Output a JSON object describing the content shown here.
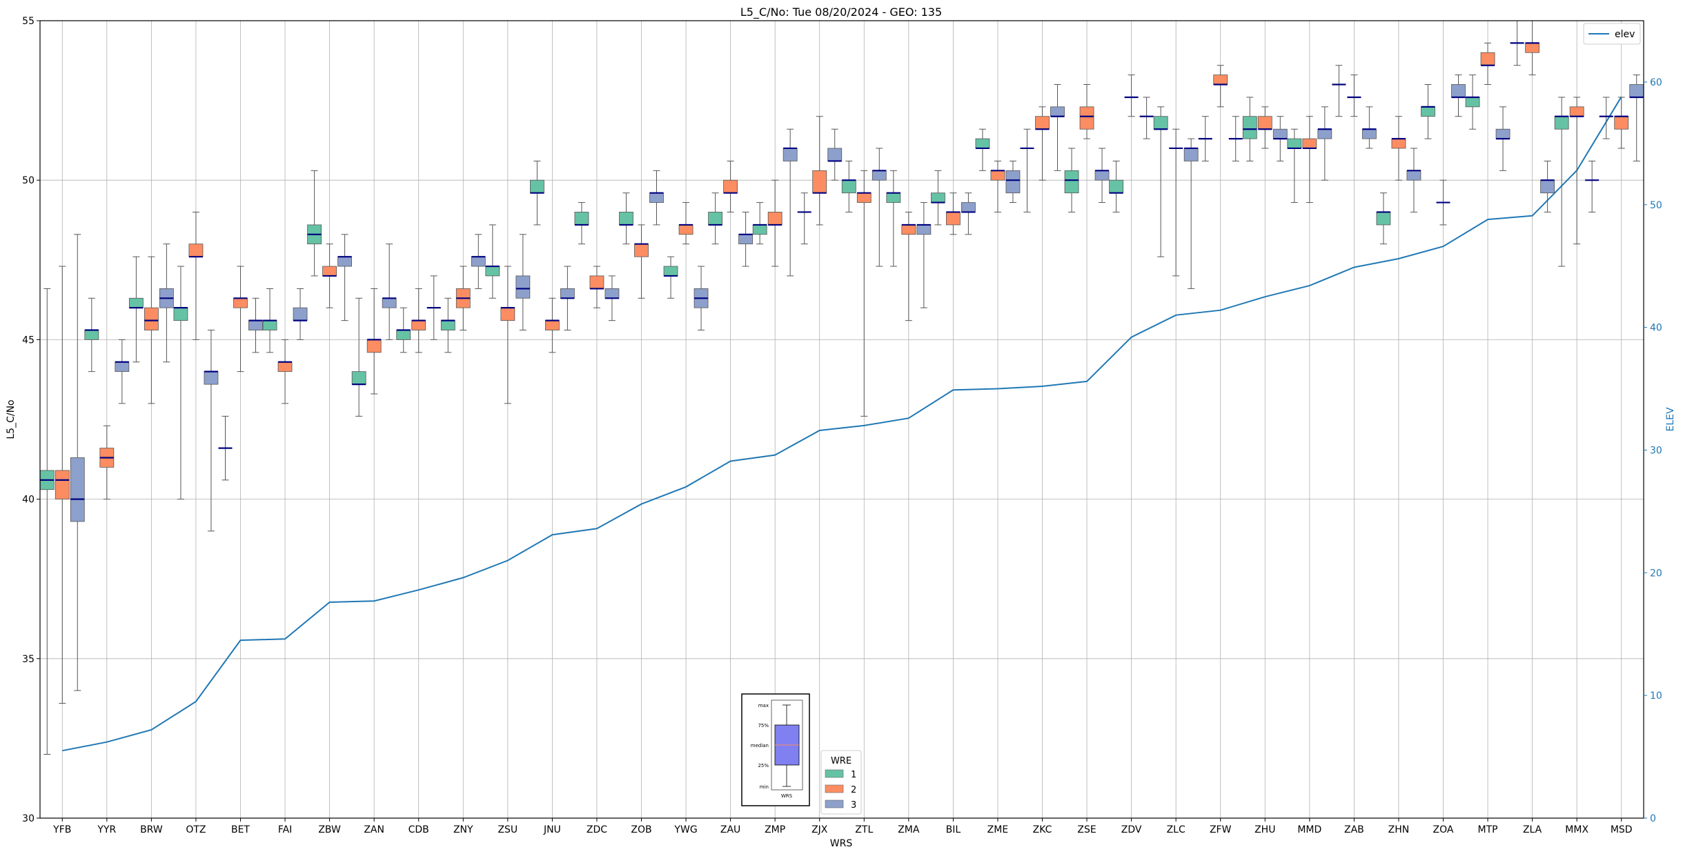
{
  "chart_data": {
    "type": "box",
    "title": "L5_C/No: Tue 08/20/2024 - GEO: 135",
    "xlabel": "WRS",
    "ylabel": "L5_C/No",
    "y2label": "ELEV",
    "ylim": [
      30,
      55
    ],
    "y2lim": [
      0,
      65
    ],
    "yticks": [
      "30",
      "35",
      "40",
      "45",
      "50",
      "55"
    ],
    "y2ticks": [
      "0",
      "10",
      "20",
      "30",
      "40",
      "50",
      "60"
    ],
    "grid": true,
    "colors": {
      "1": "#66c2a5",
      "2": "#fc8d62",
      "3": "#8da0cb",
      "median": "#000080",
      "whisker": "#555555",
      "elev": "#1f77b4",
      "y2axis": "#1f77b4"
    },
    "categories": [
      "YFB",
      "YYR",
      "BRW",
      "OTZ",
      "BET",
      "FAI",
      "ZBW",
      "ZAN",
      "CDB",
      "ZNY",
      "ZSU",
      "JNU",
      "ZDC",
      "ZOB",
      "YWG",
      "ZAU",
      "ZMP",
      "ZJX",
      "ZTL",
      "ZMA",
      "BIL",
      "ZME",
      "ZKC",
      "ZSE",
      "ZDV",
      "ZLC",
      "ZFW",
      "ZHU",
      "MMD",
      "ZAB",
      "ZHN",
      "ZOA",
      "MTP",
      "ZLA",
      "MMX",
      "MSD"
    ],
    "elev_legend": "elev",
    "elev": [
      5.5,
      6.2,
      7.2,
      9.5,
      14.5,
      14.6,
      17.6,
      17.7,
      18.6,
      19.6,
      21.0,
      23.1,
      23.6,
      25.6,
      27.0,
      29.1,
      29.6,
      31.6,
      32.0,
      32.6,
      34.9,
      35.0,
      35.2,
      35.6,
      39.2,
      41.0,
      41.4,
      42.5,
      43.4,
      44.9,
      45.6,
      46.6,
      48.8,
      49.1,
      52.8,
      58.8
    ],
    "legend": {
      "title": "WRE",
      "entries": [
        "1",
        "2",
        "3"
      ]
    },
    "inset": {
      "labels": [
        "max",
        "75%",
        "median",
        "25%",
        "min"
      ],
      "xlabel": "WRS"
    },
    "boxes": [
      {
        "cat": "YFB",
        "wre": 1,
        "min": 32.0,
        "q1": 40.3,
        "med": 40.6,
        "q3": 40.9,
        "max": 46.6
      },
      {
        "cat": "YFB",
        "wre": 2,
        "min": 33.6,
        "q1": 40.0,
        "med": 40.6,
        "q3": 40.9,
        "max": 47.3
      },
      {
        "cat": "YFB",
        "wre": 3,
        "min": 34.0,
        "q1": 39.3,
        "med": 40.0,
        "q3": 41.3,
        "max": 48.3
      },
      {
        "cat": "YYR",
        "wre": 1,
        "min": 44.0,
        "q1": 45.0,
        "med": 45.3,
        "q3": 45.3,
        "max": 46.3
      },
      {
        "cat": "YYR",
        "wre": 2,
        "min": 40.0,
        "q1": 41.0,
        "med": 41.3,
        "q3": 41.6,
        "max": 42.3
      },
      {
        "cat": "YYR",
        "wre": 3,
        "min": 43.0,
        "q1": 44.0,
        "med": 44.3,
        "q3": 44.3,
        "max": 45.0
      },
      {
        "cat": "BRW",
        "wre": 1,
        "min": 44.3,
        "q1": 46.0,
        "med": 46.0,
        "q3": 46.3,
        "max": 47.6
      },
      {
        "cat": "BRW",
        "wre": 2,
        "min": 43.0,
        "q1": 45.3,
        "med": 45.6,
        "q3": 46.0,
        "max": 47.6
      },
      {
        "cat": "BRW",
        "wre": 3,
        "min": 44.3,
        "q1": 46.0,
        "med": 46.3,
        "q3": 46.6,
        "max": 48.0
      },
      {
        "cat": "OTZ",
        "wre": 1,
        "min": 40.0,
        "q1": 45.6,
        "med": 46.0,
        "q3": 46.0,
        "max": 47.3
      },
      {
        "cat": "OTZ",
        "wre": 2,
        "min": 45.0,
        "q1": 47.6,
        "med": 47.6,
        "q3": 48.0,
        "max": 49.0
      },
      {
        "cat": "OTZ",
        "wre": 3,
        "min": 39.0,
        "q1": 43.6,
        "med": 44.0,
        "q3": 44.0,
        "max": 45.3
      },
      {
        "cat": "BET",
        "wre": 1,
        "min": 40.6,
        "q1": 41.6,
        "med": 41.6,
        "q3": 41.6,
        "max": 42.6
      },
      {
        "cat": "BET",
        "wre": 2,
        "min": 44.0,
        "q1": 46.0,
        "med": 46.3,
        "q3": 46.3,
        "max": 47.3
      },
      {
        "cat": "BET",
        "wre": 3,
        "min": 44.6,
        "q1": 45.3,
        "med": 45.6,
        "q3": 45.6,
        "max": 46.3
      },
      {
        "cat": "FAI",
        "wre": 1,
        "min": 44.6,
        "q1": 45.3,
        "med": 45.6,
        "q3": 45.6,
        "max": 46.6
      },
      {
        "cat": "FAI",
        "wre": 2,
        "min": 43.0,
        "q1": 44.0,
        "med": 44.3,
        "q3": 44.3,
        "max": 45.0
      },
      {
        "cat": "FAI",
        "wre": 3,
        "min": 45.0,
        "q1": 45.6,
        "med": 45.6,
        "q3": 46.0,
        "max": 46.6
      },
      {
        "cat": "ZBW",
        "wre": 1,
        "min": 47.0,
        "q1": 48.0,
        "med": 48.3,
        "q3": 48.6,
        "max": 50.3
      },
      {
        "cat": "ZBW",
        "wre": 2,
        "min": 46.0,
        "q1": 47.0,
        "med": 47.0,
        "q3": 47.3,
        "max": 48.0
      },
      {
        "cat": "ZBW",
        "wre": 3,
        "min": 45.6,
        "q1": 47.3,
        "med": 47.6,
        "q3": 47.6,
        "max": 48.3
      },
      {
        "cat": "ZAN",
        "wre": 1,
        "min": 42.6,
        "q1": 43.6,
        "med": 43.6,
        "q3": 44.0,
        "max": 46.3
      },
      {
        "cat": "ZAN",
        "wre": 2,
        "min": 43.3,
        "q1": 44.6,
        "med": 45.0,
        "q3": 45.0,
        "max": 46.6
      },
      {
        "cat": "ZAN",
        "wre": 3,
        "min": 45.0,
        "q1": 46.0,
        "med": 46.3,
        "q3": 46.3,
        "max": 48.0
      },
      {
        "cat": "CDB",
        "wre": 1,
        "min": 44.6,
        "q1": 45.0,
        "med": 45.3,
        "q3": 45.3,
        "max": 46.0
      },
      {
        "cat": "CDB",
        "wre": 2,
        "min": 44.6,
        "q1": 45.3,
        "med": 45.6,
        "q3": 45.6,
        "max": 46.6
      },
      {
        "cat": "CDB",
        "wre": 3,
        "min": 45.0,
        "q1": 46.0,
        "med": 46.0,
        "q3": 46.0,
        "max": 47.0
      },
      {
        "cat": "ZNY",
        "wre": 1,
        "min": 44.6,
        "q1": 45.3,
        "med": 45.6,
        "q3": 45.6,
        "max": 46.3
      },
      {
        "cat": "ZNY",
        "wre": 2,
        "min": 45.3,
        "q1": 46.0,
        "med": 46.3,
        "q3": 46.6,
        "max": 47.3
      },
      {
        "cat": "ZNY",
        "wre": 3,
        "min": 46.6,
        "q1": 47.3,
        "med": 47.6,
        "q3": 47.6,
        "max": 48.3
      },
      {
        "cat": "ZSU",
        "wre": 1,
        "min": 46.3,
        "q1": 47.0,
        "med": 47.3,
        "q3": 47.3,
        "max": 48.6
      },
      {
        "cat": "ZSU",
        "wre": 2,
        "min": 43.0,
        "q1": 45.6,
        "med": 46.0,
        "q3": 46.0,
        "max": 47.3
      },
      {
        "cat": "ZSU",
        "wre": 3,
        "min": 45.3,
        "q1": 46.3,
        "med": 46.6,
        "q3": 47.0,
        "max": 48.3
      },
      {
        "cat": "JNU",
        "wre": 1,
        "min": 48.6,
        "q1": 49.6,
        "med": 49.6,
        "q3": 50.0,
        "max": 50.6
      },
      {
        "cat": "JNU",
        "wre": 2,
        "min": 44.6,
        "q1": 45.3,
        "med": 45.6,
        "q3": 45.6,
        "max": 46.3
      },
      {
        "cat": "JNU",
        "wre": 3,
        "min": 45.3,
        "q1": 46.3,
        "med": 46.3,
        "q3": 46.6,
        "max": 47.3
      },
      {
        "cat": "ZDC",
        "wre": 1,
        "min": 48.0,
        "q1": 48.6,
        "med": 48.6,
        "q3": 49.0,
        "max": 49.3
      },
      {
        "cat": "ZDC",
        "wre": 2,
        "min": 46.0,
        "q1": 46.6,
        "med": 46.6,
        "q3": 47.0,
        "max": 47.3
      },
      {
        "cat": "ZDC",
        "wre": 3,
        "min": 45.6,
        "q1": 46.3,
        "med": 46.3,
        "q3": 46.6,
        "max": 47.0
      },
      {
        "cat": "ZOB",
        "wre": 1,
        "min": 48.0,
        "q1": 48.6,
        "med": 48.6,
        "q3": 49.0,
        "max": 49.6
      },
      {
        "cat": "ZOB",
        "wre": 2,
        "min": 46.3,
        "q1": 47.6,
        "med": 48.0,
        "q3": 48.0,
        "max": 48.6
      },
      {
        "cat": "ZOB",
        "wre": 3,
        "min": 48.6,
        "q1": 49.3,
        "med": 49.6,
        "q3": 49.6,
        "max": 50.3
      },
      {
        "cat": "YWG",
        "wre": 1,
        "min": 46.3,
        "q1": 47.0,
        "med": 47.0,
        "q3": 47.3,
        "max": 47.6
      },
      {
        "cat": "YWG",
        "wre": 2,
        "min": 48.0,
        "q1": 48.3,
        "med": 48.6,
        "q3": 48.6,
        "max": 49.3
      },
      {
        "cat": "YWG",
        "wre": 3,
        "min": 45.3,
        "q1": 46.0,
        "med": 46.3,
        "q3": 46.6,
        "max": 47.3
      },
      {
        "cat": "ZAU",
        "wre": 1,
        "min": 48.0,
        "q1": 48.6,
        "med": 48.6,
        "q3": 49.0,
        "max": 49.6
      },
      {
        "cat": "ZAU",
        "wre": 2,
        "min": 49.0,
        "q1": 49.6,
        "med": 49.6,
        "q3": 50.0,
        "max": 50.6
      },
      {
        "cat": "ZAU",
        "wre": 3,
        "min": 47.3,
        "q1": 48.0,
        "med": 48.3,
        "q3": 48.3,
        "max": 49.0
      },
      {
        "cat": "ZMP",
        "wre": 1,
        "min": 48.0,
        "q1": 48.3,
        "med": 48.6,
        "q3": 48.6,
        "max": 49.3
      },
      {
        "cat": "ZMP",
        "wre": 2,
        "min": 47.3,
        "q1": 48.6,
        "med": 48.6,
        "q3": 49.0,
        "max": 50.0
      },
      {
        "cat": "ZMP",
        "wre": 3,
        "min": 47.0,
        "q1": 50.6,
        "med": 51.0,
        "q3": 51.0,
        "max": 51.6
      },
      {
        "cat": "ZJX",
        "wre": 1,
        "min": 48.0,
        "q1": 49.0,
        "med": 49.0,
        "q3": 49.0,
        "max": 49.6
      },
      {
        "cat": "ZJX",
        "wre": 2,
        "min": 48.6,
        "q1": 49.6,
        "med": 49.6,
        "q3": 50.3,
        "max": 52.0
      },
      {
        "cat": "ZJX",
        "wre": 3,
        "min": 50.0,
        "q1": 50.6,
        "med": 50.6,
        "q3": 51.0,
        "max": 51.6
      },
      {
        "cat": "ZTL",
        "wre": 1,
        "min": 49.0,
        "q1": 49.6,
        "med": 50.0,
        "q3": 50.0,
        "max": 50.6
      },
      {
        "cat": "ZTL",
        "wre": 2,
        "min": 42.6,
        "q1": 49.3,
        "med": 49.6,
        "q3": 49.6,
        "max": 50.3
      },
      {
        "cat": "ZTL",
        "wre": 3,
        "min": 47.3,
        "q1": 50.0,
        "med": 50.3,
        "q3": 50.3,
        "max": 51.0
      },
      {
        "cat": "ZMA",
        "wre": 1,
        "min": 47.3,
        "q1": 49.3,
        "med": 49.6,
        "q3": 49.6,
        "max": 50.3
      },
      {
        "cat": "ZMA",
        "wre": 2,
        "min": 45.6,
        "q1": 48.3,
        "med": 48.6,
        "q3": 48.6,
        "max": 49.0
      },
      {
        "cat": "ZMA",
        "wre": 3,
        "min": 46.0,
        "q1": 48.3,
        "med": 48.6,
        "q3": 48.6,
        "max": 49.3
      },
      {
        "cat": "BIL",
        "wre": 1,
        "min": 48.6,
        "q1": 49.3,
        "med": 49.3,
        "q3": 49.6,
        "max": 50.3
      },
      {
        "cat": "BIL",
        "wre": 2,
        "min": 48.3,
        "q1": 48.6,
        "med": 49.0,
        "q3": 49.0,
        "max": 49.6
      },
      {
        "cat": "BIL",
        "wre": 3,
        "min": 48.3,
        "q1": 49.0,
        "med": 49.0,
        "q3": 49.3,
        "max": 49.6
      },
      {
        "cat": "ZME",
        "wre": 1,
        "min": 50.3,
        "q1": 51.0,
        "med": 51.0,
        "q3": 51.3,
        "max": 51.6
      },
      {
        "cat": "ZME",
        "wre": 2,
        "min": 49.0,
        "q1": 50.0,
        "med": 50.3,
        "q3": 50.3,
        "max": 50.6
      },
      {
        "cat": "ZME",
        "wre": 3,
        "min": 49.3,
        "q1": 49.6,
        "med": 50.0,
        "q3": 50.3,
        "max": 50.6
      },
      {
        "cat": "ZKC",
        "wre": 1,
        "min": 49.0,
        "q1": 51.0,
        "med": 51.0,
        "q3": 51.0,
        "max": 51.6
      },
      {
        "cat": "ZKC",
        "wre": 2,
        "min": 50.0,
        "q1": 51.6,
        "med": 51.6,
        "q3": 52.0,
        "max": 52.3
      },
      {
        "cat": "ZKC",
        "wre": 3,
        "min": 50.3,
        "q1": 52.0,
        "med": 52.0,
        "q3": 52.3,
        "max": 53.0
      },
      {
        "cat": "ZSE",
        "wre": 1,
        "min": 49.0,
        "q1": 49.6,
        "med": 50.0,
        "q3": 50.3,
        "max": 51.0
      },
      {
        "cat": "ZSE",
        "wre": 2,
        "min": 51.3,
        "q1": 51.6,
        "med": 52.0,
        "q3": 52.3,
        "max": 53.0
      },
      {
        "cat": "ZSE",
        "wre": 3,
        "min": 49.3,
        "q1": 50.0,
        "med": 50.3,
        "q3": 50.3,
        "max": 51.0
      },
      {
        "cat": "ZDV",
        "wre": 1,
        "min": 49.0,
        "q1": 49.6,
        "med": 49.6,
        "q3": 50.0,
        "max": 50.6
      },
      {
        "cat": "ZDV",
        "wre": 2,
        "min": 52.0,
        "q1": 52.6,
        "med": 52.6,
        "q3": 52.6,
        "max": 53.3
      },
      {
        "cat": "ZDV",
        "wre": 3,
        "min": 51.3,
        "q1": 52.0,
        "med": 52.0,
        "q3": 52.0,
        "max": 52.6
      },
      {
        "cat": "ZLC",
        "wre": 1,
        "min": 47.6,
        "q1": 51.6,
        "med": 51.6,
        "q3": 52.0,
        "max": 52.3
      },
      {
        "cat": "ZLC",
        "wre": 2,
        "min": 47.0,
        "q1": 51.0,
        "med": 51.0,
        "q3": 51.0,
        "max": 51.6
      },
      {
        "cat": "ZLC",
        "wre": 3,
        "min": 46.6,
        "q1": 50.6,
        "med": 51.0,
        "q3": 51.0,
        "max": 51.3
      },
      {
        "cat": "ZFW",
        "wre": 1,
        "min": 50.6,
        "q1": 51.3,
        "med": 51.3,
        "q3": 51.3,
        "max": 52.0
      },
      {
        "cat": "ZFW",
        "wre": 2,
        "min": 52.3,
        "q1": 53.0,
        "med": 53.0,
        "q3": 53.3,
        "max": 53.6
      },
      {
        "cat": "ZFW",
        "wre": 3,
        "min": 50.6,
        "q1": 51.3,
        "med": 51.3,
        "q3": 51.3,
        "max": 52.0
      },
      {
        "cat": "ZHU",
        "wre": 1,
        "min": 50.6,
        "q1": 51.3,
        "med": 51.6,
        "q3": 52.0,
        "max": 52.6
      },
      {
        "cat": "ZHU",
        "wre": 2,
        "min": 51.0,
        "q1": 51.6,
        "med": 51.6,
        "q3": 52.0,
        "max": 52.3
      },
      {
        "cat": "ZHU",
        "wre": 3,
        "min": 50.6,
        "q1": 51.3,
        "med": 51.3,
        "q3": 51.6,
        "max": 52.0
      },
      {
        "cat": "MMD",
        "wre": 1,
        "min": 49.3,
        "q1": 51.0,
        "med": 51.0,
        "q3": 51.3,
        "max": 51.6
      },
      {
        "cat": "MMD",
        "wre": 2,
        "min": 49.3,
        "q1": 51.0,
        "med": 51.0,
        "q3": 51.3,
        "max": 52.0
      },
      {
        "cat": "MMD",
        "wre": 3,
        "min": 50.0,
        "q1": 51.3,
        "med": 51.6,
        "q3": 51.6,
        "max": 52.3
      },
      {
        "cat": "ZAB",
        "wre": 1,
        "min": 52.0,
        "q1": 53.0,
        "med": 53.0,
        "q3": 53.0,
        "max": 53.6
      },
      {
        "cat": "ZAB",
        "wre": 2,
        "min": 52.0,
        "q1": 52.6,
        "med": 52.6,
        "q3": 52.6,
        "max": 53.3
      },
      {
        "cat": "ZAB",
        "wre": 3,
        "min": 51.0,
        "q1": 51.3,
        "med": 51.6,
        "q3": 51.6,
        "max": 52.3
      },
      {
        "cat": "ZHN",
        "wre": 1,
        "min": 48.0,
        "q1": 48.6,
        "med": 49.0,
        "q3": 49.0,
        "max": 49.6
      },
      {
        "cat": "ZHN",
        "wre": 2,
        "min": 50.0,
        "q1": 51.0,
        "med": 51.3,
        "q3": 51.3,
        "max": 52.0
      },
      {
        "cat": "ZHN",
        "wre": 3,
        "min": 49.0,
        "q1": 50.0,
        "med": 50.3,
        "q3": 50.3,
        "max": 51.0
      },
      {
        "cat": "ZOA",
        "wre": 1,
        "min": 51.3,
        "q1": 52.0,
        "med": 52.3,
        "q3": 52.3,
        "max": 53.0
      },
      {
        "cat": "ZOA",
        "wre": 2,
        "min": 48.6,
        "q1": 49.3,
        "med": 49.3,
        "q3": 49.3,
        "max": 50.0
      },
      {
        "cat": "ZOA",
        "wre": 3,
        "min": 52.0,
        "q1": 52.6,
        "med": 52.6,
        "q3": 53.0,
        "max": 53.3
      },
      {
        "cat": "MTP",
        "wre": 1,
        "min": 51.6,
        "q1": 52.3,
        "med": 52.6,
        "q3": 52.6,
        "max": 53.3
      },
      {
        "cat": "MTP",
        "wre": 2,
        "min": 53.0,
        "q1": 53.6,
        "med": 53.6,
        "q3": 54.0,
        "max": 54.3
      },
      {
        "cat": "MTP",
        "wre": 3,
        "min": 50.3,
        "q1": 51.3,
        "med": 51.3,
        "q3": 51.6,
        "max": 52.3
      },
      {
        "cat": "ZLA",
        "wre": 1,
        "min": 53.6,
        "q1": 54.3,
        "med": 54.3,
        "q3": 54.3,
        "max": 55.0
      },
      {
        "cat": "ZLA",
        "wre": 2,
        "min": 53.3,
        "q1": 54.0,
        "med": 54.3,
        "q3": 54.3,
        "max": 55.0
      },
      {
        "cat": "ZLA",
        "wre": 3,
        "min": 49.0,
        "q1": 49.6,
        "med": 50.0,
        "q3": 50.0,
        "max": 50.6
      },
      {
        "cat": "MMX",
        "wre": 1,
        "min": 47.3,
        "q1": 51.6,
        "med": 52.0,
        "q3": 52.0,
        "max": 52.6
      },
      {
        "cat": "MMX",
        "wre": 2,
        "min": 48.0,
        "q1": 52.0,
        "med": 52.0,
        "q3": 52.3,
        "max": 52.6
      },
      {
        "cat": "MMX",
        "wre": 3,
        "min": 49.0,
        "q1": 50.0,
        "med": 50.0,
        "q3": 50.0,
        "max": 50.6
      },
      {
        "cat": "MSD",
        "wre": 1,
        "min": 51.3,
        "q1": 52.0,
        "med": 52.0,
        "q3": 52.0,
        "max": 52.6
      },
      {
        "cat": "MSD",
        "wre": 2,
        "min": 51.0,
        "q1": 51.6,
        "med": 52.0,
        "q3": 52.0,
        "max": 52.6
      },
      {
        "cat": "MSD",
        "wre": 3,
        "min": 50.6,
        "q1": 52.6,
        "med": 52.6,
        "q3": 53.0,
        "max": 53.3
      }
    ]
  }
}
